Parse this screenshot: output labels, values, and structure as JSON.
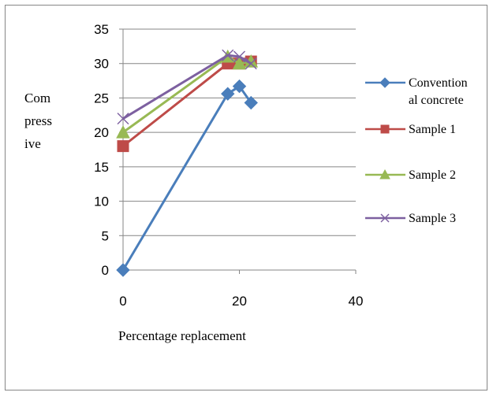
{
  "chart_data": {
    "type": "line",
    "title": "",
    "xlabel": "Percentage replacement",
    "ylabel_lines": [
      "Com",
      "press",
      "ive"
    ],
    "xlim": [
      0,
      40
    ],
    "ylim": [
      0,
      35
    ],
    "x_ticks": [
      0,
      20,
      40
    ],
    "y_ticks": [
      0,
      5,
      10,
      15,
      20,
      25,
      30,
      35
    ],
    "grid": "horizontal",
    "legend_position": "right",
    "series": [
      {
        "name_lines": [
          "Convention",
          "al concrete"
        ],
        "color": "#4a7ebb",
        "marker": "diamond",
        "points": [
          [
            0,
            0
          ],
          [
            18,
            25.6
          ],
          [
            20,
            26.7
          ],
          [
            22,
            24.3
          ]
        ]
      },
      {
        "name_lines": [
          "Sample 1"
        ],
        "color": "#be4b48",
        "marker": "square",
        "points": [
          [
            0,
            18
          ],
          [
            18,
            30
          ],
          [
            20,
            30
          ],
          [
            22,
            30.3
          ]
        ]
      },
      {
        "name_lines": [
          "Sample 2"
        ],
        "color": "#98b954",
        "marker": "triangle",
        "points": [
          [
            0,
            20
          ],
          [
            18,
            31
          ],
          [
            20,
            30
          ],
          [
            22,
            30.3
          ]
        ]
      },
      {
        "name_lines": [
          "Sample 3"
        ],
        "color": "#7d60a0",
        "marker": "x",
        "points": [
          [
            0,
            22
          ],
          [
            18,
            31.2
          ],
          [
            20,
            31
          ],
          [
            22,
            30
          ]
        ]
      }
    ]
  }
}
